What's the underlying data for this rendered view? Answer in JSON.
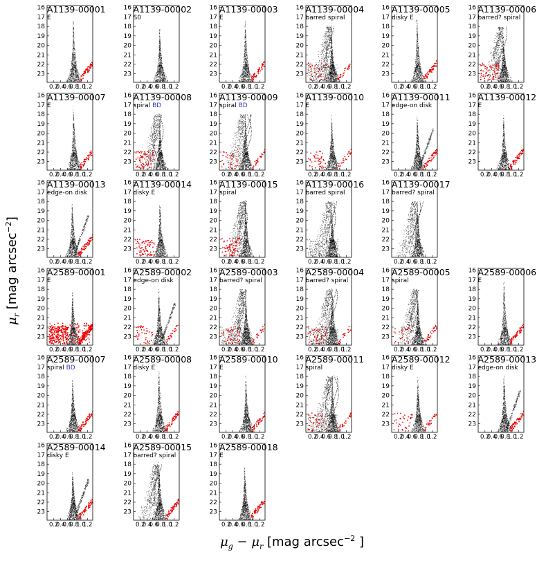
{
  "figure": {
    "ylabel_sym": "μ",
    "ylabel_sub": "r",
    "ylabel_text": " [mag arcsec",
    "ylabel_sup": "−2",
    "ylabel_end": "]",
    "xlabel_sym1": "μ",
    "xlabel_sub1": "g",
    "xlabel_minus": " − ",
    "xlabel_sym2": "μ",
    "xlabel_sub2": "r",
    "xlabel_text": " [mag arcsec",
    "xlabel_sup": "−2",
    "xlabel_end": " ]",
    "point_color": "#000000",
    "highlight_color": "#ee0000",
    "note_color": "#3333cc"
  },
  "chart_data": {
    "type": "scatter",
    "xlabel": "μg − μr [mag arcsec⁻²]",
    "ylabel": "μr [mag arcsec⁻²]",
    "xlim": [
      0.0,
      1.35
    ],
    "ylim": [
      23.9,
      15.8
    ],
    "xticks": [
      "0.2",
      "0.4",
      "0.6",
      "0.8",
      "1.0",
      "1.2"
    ],
    "yticks": [
      "16",
      "17",
      "18",
      "19",
      "20",
      "21",
      "22",
      "23"
    ],
    "xtick_values": [
      0.2,
      0.4,
      0.6,
      0.8,
      1.0,
      1.2
    ],
    "ytick_values": [
      16,
      17,
      18,
      19,
      20,
      21,
      22,
      23
    ],
    "panels": [
      {
        "row": 0,
        "col": 0,
        "name": "A1139-00001",
        "type": "E",
        "bd": "",
        "shape": "ell",
        "red": "right"
      },
      {
        "row": 0,
        "col": 1,
        "name": "A1139-00002",
        "type": "S0",
        "bd": "",
        "shape": "ell",
        "red": "none"
      },
      {
        "row": 0,
        "col": 2,
        "name": "A1139-00003",
        "type": "E",
        "bd": "",
        "shape": "ell",
        "red": "right"
      },
      {
        "row": 0,
        "col": 3,
        "name": "A1139-00004",
        "type": "barred spiral",
        "bd": "",
        "shape": "barred",
        "red": "both"
      },
      {
        "row": 0,
        "col": 4,
        "name": "A1139-00005",
        "type": "disky E",
        "bd": "",
        "shape": "ell",
        "red": "right"
      },
      {
        "row": 0,
        "col": 5,
        "name": "A1139-00006",
        "type": "barred? spiral",
        "bd": "",
        "shape": "spiral",
        "red": "left"
      },
      {
        "row": 1,
        "col": 0,
        "name": "A1139-00007",
        "type": "E",
        "bd": "",
        "shape": "ell",
        "red": "right"
      },
      {
        "row": 1,
        "col": 1,
        "name": "A1139-00008",
        "type": "spiral",
        "bd": "BD",
        "shape": "spiral",
        "red": "left"
      },
      {
        "row": 1,
        "col": 2,
        "name": "A1139-00009",
        "type": "spiral",
        "bd": "BD",
        "shape": "spiral",
        "red": "both"
      },
      {
        "row": 1,
        "col": 3,
        "name": "A1139-00010",
        "type": "E",
        "bd": "",
        "shape": "ell",
        "red": "both"
      },
      {
        "row": 1,
        "col": 4,
        "name": "A1139-00011",
        "type": "edge-on disk",
        "bd": "",
        "shape": "disk",
        "red": "right"
      },
      {
        "row": 1,
        "col": 5,
        "name": "A1139-00012",
        "type": "E",
        "bd": "",
        "shape": "ell",
        "red": "right"
      },
      {
        "row": 2,
        "col": 0,
        "name": "A1139-00013",
        "type": "edge-on disk",
        "bd": "",
        "shape": "disk",
        "red": "right"
      },
      {
        "row": 2,
        "col": 1,
        "name": "A1139-00014",
        "type": "disky E",
        "bd": "",
        "shape": "ell",
        "red": "left"
      },
      {
        "row": 2,
        "col": 2,
        "name": "A1139-00015",
        "type": "spiral",
        "bd": "",
        "shape": "spiral",
        "red": "left"
      },
      {
        "row": 2,
        "col": 3,
        "name": "A1139-00016",
        "type": "barred spiral",
        "bd": "",
        "shape": "barred",
        "red": "none"
      },
      {
        "row": 2,
        "col": 4,
        "name": "A1139-00017",
        "type": "barred? spiral",
        "bd": "",
        "shape": "spiral",
        "red": "none"
      },
      {
        "row": 3,
        "col": 0,
        "name": "A2589-00001",
        "type": "E",
        "bd": "",
        "shape": "ell",
        "red": "heavy"
      },
      {
        "row": 3,
        "col": 1,
        "name": "A2589-00002",
        "type": "edge-on disk",
        "bd": "",
        "shape": "disk",
        "red": "both"
      },
      {
        "row": 3,
        "col": 2,
        "name": "A2589-00003",
        "type": "barred? spiral",
        "bd": "",
        "shape": "barred",
        "red": "both"
      },
      {
        "row": 3,
        "col": 3,
        "name": "A2589-00004",
        "type": "barred? spiral",
        "bd": "",
        "shape": "barred",
        "red": "both"
      },
      {
        "row": 3,
        "col": 4,
        "name": "A2589-00005",
        "type": "spiral",
        "bd": "",
        "shape": "spiral",
        "red": "both"
      },
      {
        "row": 3,
        "col": 5,
        "name": "A2589-00006",
        "type": "E",
        "bd": "",
        "shape": "ell",
        "red": "right"
      },
      {
        "row": 4,
        "col": 0,
        "name": "A2589-00007",
        "type": "spiral",
        "bd": "BD",
        "shape": "ell",
        "red": "right"
      },
      {
        "row": 4,
        "col": 1,
        "name": "A2589-00008",
        "type": "disky E",
        "bd": "",
        "shape": "ell",
        "red": "right"
      },
      {
        "row": 4,
        "col": 2,
        "name": "A2589-00010",
        "type": "E",
        "bd": "",
        "shape": "ell",
        "red": "right"
      },
      {
        "row": 4,
        "col": 3,
        "name": "A2589-00011",
        "type": "spiral",
        "bd": "",
        "shape": "barred",
        "red": "both"
      },
      {
        "row": 4,
        "col": 4,
        "name": "A2589-00012",
        "type": "disky E",
        "bd": "",
        "shape": "ell",
        "red": "both"
      },
      {
        "row": 4,
        "col": 5,
        "name": "A2589-00013",
        "type": "edge-on disk",
        "bd": "",
        "shape": "disk",
        "red": "right"
      },
      {
        "row": 5,
        "col": 0,
        "name": "A2589-00014",
        "type": "disky E",
        "bd": "",
        "shape": "disk",
        "red": "right"
      },
      {
        "row": 5,
        "col": 1,
        "name": "A2589-00015",
        "type": "barred? spiral",
        "bd": "",
        "shape": "spiral",
        "red": "right"
      },
      {
        "row": 5,
        "col": 2,
        "name": "A2589-00018",
        "type": "E",
        "bd": "",
        "shape": "ell",
        "red": "right"
      }
    ]
  }
}
